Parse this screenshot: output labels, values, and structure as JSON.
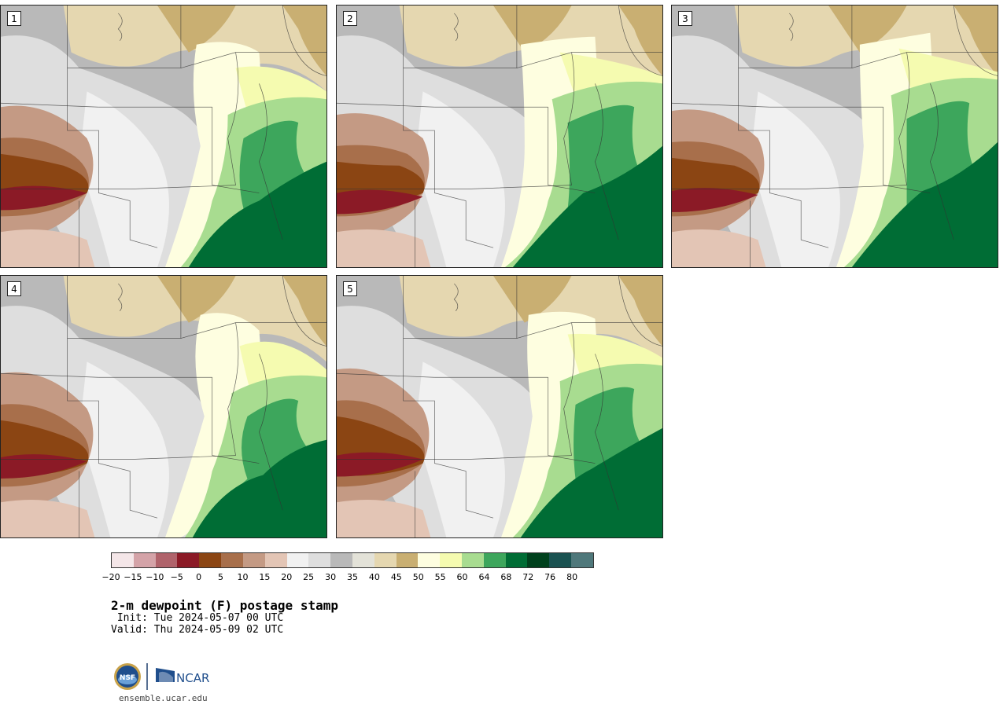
{
  "panels": [
    {
      "label": "1"
    },
    {
      "label": "2"
    },
    {
      "label": "3"
    },
    {
      "label": "4"
    },
    {
      "label": "5"
    }
  ],
  "colorbar": {
    "colors": [
      "#f4e6e8",
      "#d4a3a8",
      "#b0636b",
      "#8b1a26",
      "#8b4513",
      "#a86f4b",
      "#c49a84",
      "#e3c5b5",
      "#f1f1f1",
      "#dedede",
      "#b9b9b9",
      "#e3e2d8",
      "#e5d7b0",
      "#c9af72",
      "#fefee0",
      "#f5fbb0",
      "#a8dc90",
      "#3da65c",
      "#006d35",
      "#00411d",
      "#1a5251",
      "#4f787b"
    ],
    "ticks": [
      "−20",
      "−15",
      "−10",
      "−5",
      "0",
      "5",
      "10",
      "15",
      "20",
      "25",
      "30",
      "35",
      "40",
      "45",
      "50",
      "55",
      "60",
      "64",
      "68",
      "72",
      "76",
      "80"
    ]
  },
  "title": "2-m dewpoint (F) postage stamp",
  "init": " Init: Tue 2024-05-07 00 UTC",
  "valid": "Valid: Thu 2024-05-09 02 UTC",
  "logos": {
    "nsf": "NSF",
    "ncar": "NCAR"
  },
  "site": "ensemble.ucar.edu"
}
